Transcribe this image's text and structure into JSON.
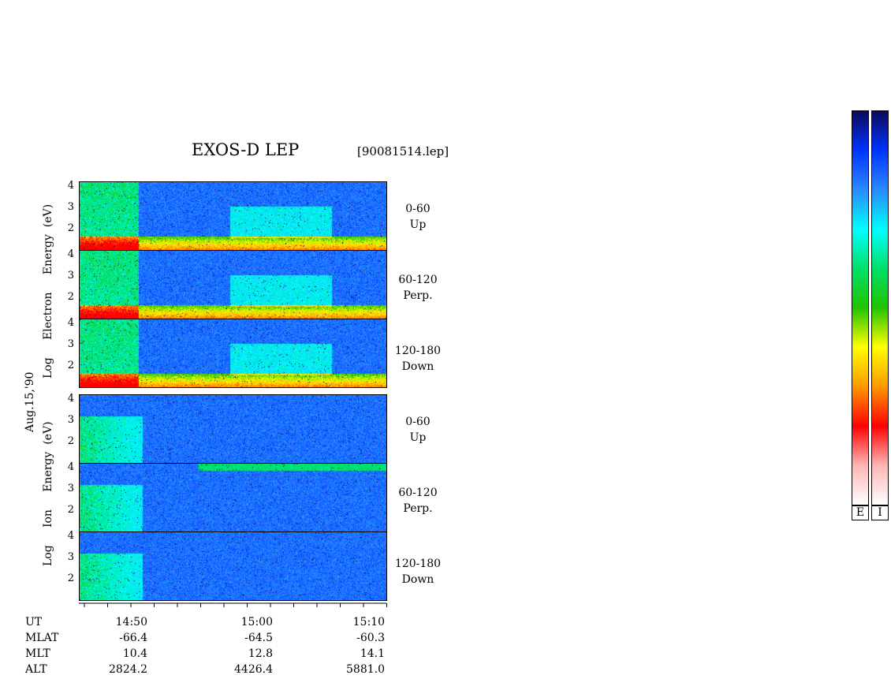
{
  "chart_data": {
    "type": "heatmap",
    "title": "EXOS-D LEP",
    "filename": "[90081514.lep]",
    "date_label": "Aug.15,'90",
    "electron_ylabel": [
      "Log",
      "Electron",
      "Energy",
      "(eV)"
    ],
    "ion_ylabel": [
      "Log",
      "Ion",
      "Energy",
      "(eV)"
    ],
    "y_ticks": [
      "4",
      "3",
      "2"
    ],
    "ylim": [
      1,
      4
    ],
    "y_scale": "log10 energy (eV)",
    "panels": [
      {
        "species": "Electron",
        "pitch": "0-60",
        "dir": "Up"
      },
      {
        "species": "Electron",
        "pitch": "60-120",
        "dir": "Perp."
      },
      {
        "species": "Electron",
        "pitch": "120-180",
        "dir": "Down"
      },
      {
        "species": "Ion",
        "pitch": "0-60",
        "dir": "Up"
      },
      {
        "species": "Ion",
        "pitch": "60-120",
        "dir": "Perp."
      },
      {
        "species": "Ion",
        "pitch": "120-180",
        "dir": "Down"
      }
    ],
    "x_ticks": [
      "14:50",
      "15:00",
      "15:10"
    ],
    "footer_rows": [
      {
        "label": "UT",
        "values": [
          "14:50",
          "15:00",
          "15:10"
        ]
      },
      {
        "label": "MLAT",
        "values": [
          "-66.4",
          "-64.5",
          "-60.3"
        ]
      },
      {
        "label": "MLT",
        "values": [
          "10.4",
          "12.8",
          "14.1"
        ]
      },
      {
        "label": "ALT",
        "values": [
          "2824.2",
          "4426.4",
          "5881.0"
        ]
      }
    ],
    "colorbars": [
      {
        "label": "E"
      },
      {
        "label": "I"
      }
    ],
    "colormap": [
      "#0a0a5a",
      "#0033ff",
      "#2a8bff",
      "#00ffff",
      "#00e06a",
      "#22c400",
      "#ffff00",
      "#ff9900",
      "#ff0000",
      "#ffb4b4",
      "#ffffff"
    ]
  }
}
